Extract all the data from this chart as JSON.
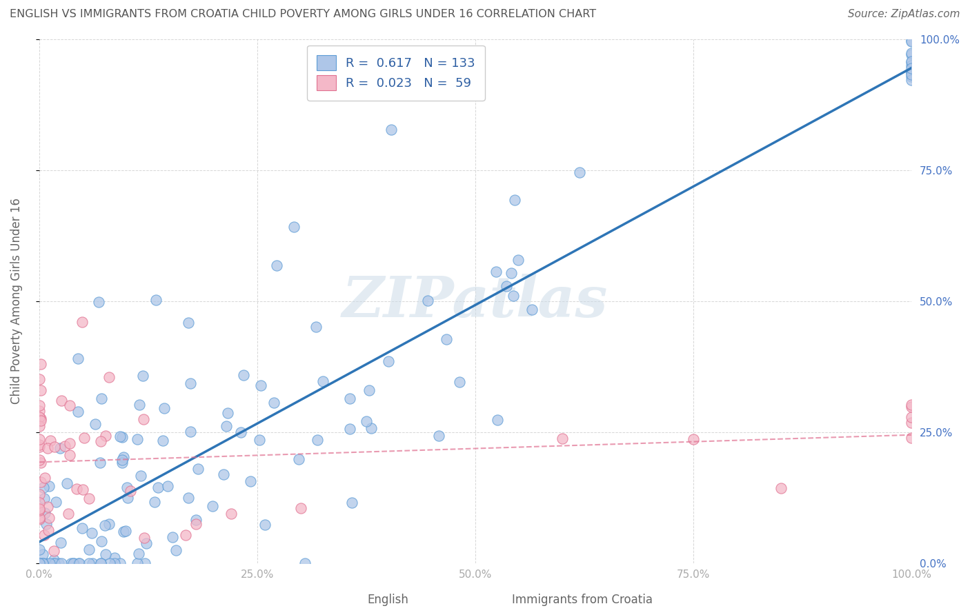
{
  "title": "ENGLISH VS IMMIGRANTS FROM CROATIA CHILD POVERTY AMONG GIRLS UNDER 16 CORRELATION CHART",
  "source": "Source: ZipAtlas.com",
  "ylabel": "Child Poverty Among Girls Under 16",
  "legend_english_R": "0.617",
  "legend_english_N": "133",
  "legend_croatia_R": "0.023",
  "legend_croatia_N": "59",
  "english_face_color": "#aec6e8",
  "english_edge_color": "#5b9bd5",
  "english_line_color": "#2e75b6",
  "croatia_face_color": "#f4b8c8",
  "croatia_edge_color": "#e07090",
  "croatia_line_color": "#e07090",
  "watermark_color": "#ccdce8",
  "background_color": "#ffffff",
  "grid_color": "#cccccc",
  "title_color": "#555555",
  "label_color": "#666666",
  "tick_color": "#aaaaaa",
  "right_tick_color": "#4472c4",
  "x_ticks": [
    0.0,
    0.25,
    0.5,
    0.75,
    1.0
  ],
  "x_tick_labels": [
    "0.0%",
    "25.0%",
    "50.0%",
    "75.0%",
    "100.0%"
  ],
  "y_ticks": [
    0.0,
    0.25,
    0.5,
    0.75,
    1.0
  ],
  "y_tick_labels": [
    "0.0%",
    "25.0%",
    "50.0%",
    "75.0%",
    "100.0%"
  ],
  "bottom_label_english": "English",
  "bottom_label_croatia": "Immigrants from Croatia",
  "english_line_intercept": -0.08,
  "english_line_slope": 0.93,
  "croatia_line_intercept": 0.18,
  "croatia_line_slope": 0.12
}
